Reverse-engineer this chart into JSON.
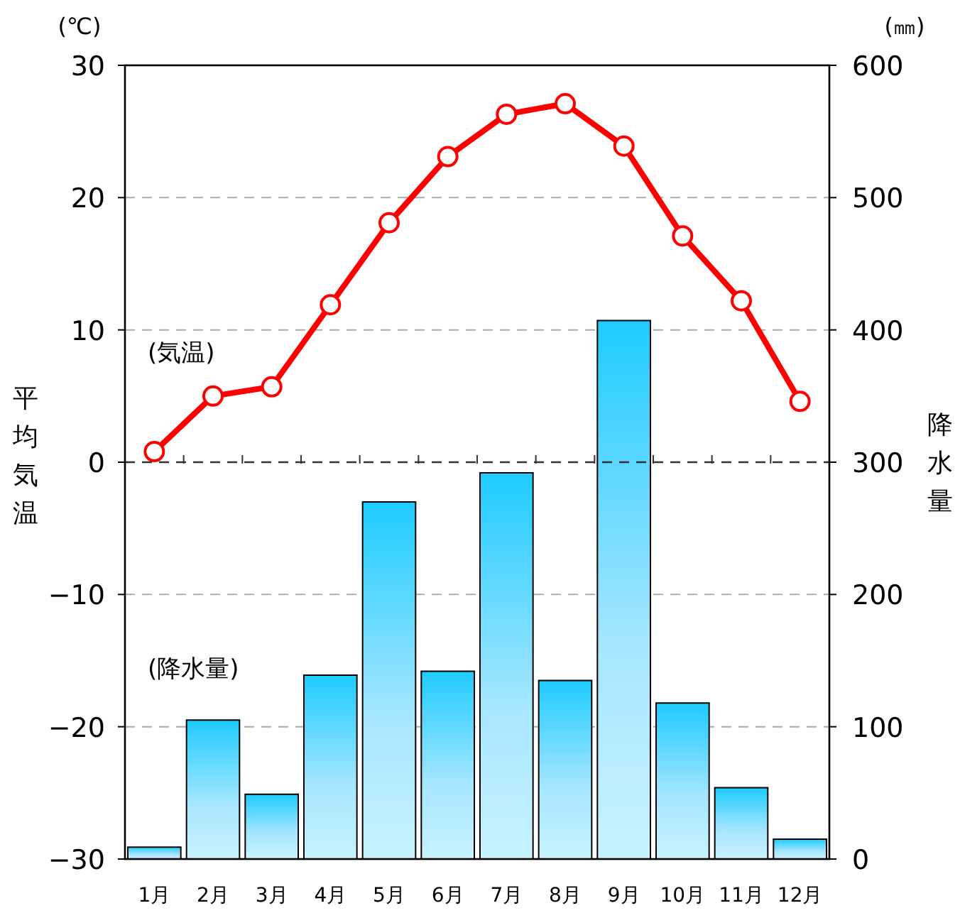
{
  "chart_data": {
    "type": "line",
    "categories": [
      "1月",
      "2月",
      "3月",
      "4月",
      "5月",
      "6月",
      "7月",
      "8月",
      "9月",
      "10月",
      "11月",
      "12月"
    ],
    "series": [
      {
        "name": "(降水量)",
        "type": "bar",
        "axis": "y2",
        "color": "#1ecbff",
        "values": [
          9,
          105,
          49,
          139,
          270,
          142,
          292,
          135,
          407,
          118,
          54,
          15
        ]
      },
      {
        "name": "(気温)",
        "color": "#ff0000",
        "marker": "circle",
        "values": [
          0.8,
          5.0,
          5.7,
          11.9,
          18.1,
          23.1,
          26.3,
          27.1,
          23.9,
          17.1,
          12.2,
          4.6
        ]
      }
    ],
    "ylabel": "平均気温",
    "y2label": "降水量",
    "annotations": [
      "(℃)",
      "(㎜)"
    ],
    "ylim": [
      -30,
      30
    ],
    "yticks": [
      {
        "value": -30,
        "label": "−30"
      },
      {
        "value": -20,
        "label": "−20"
      },
      {
        "value": -10,
        "label": "−10"
      },
      0,
      10,
      20,
      30
    ],
    "y2lim": [
      0,
      600
    ],
    "y2ticks": [
      0,
      100,
      200,
      300,
      400,
      500,
      600
    ],
    "grid": "y",
    "ref_lines": [
      {
        "axis": "y",
        "value": 0,
        "color": "#333333",
        "line_style": "dashed"
      }
    ],
    "legend": false
  }
}
